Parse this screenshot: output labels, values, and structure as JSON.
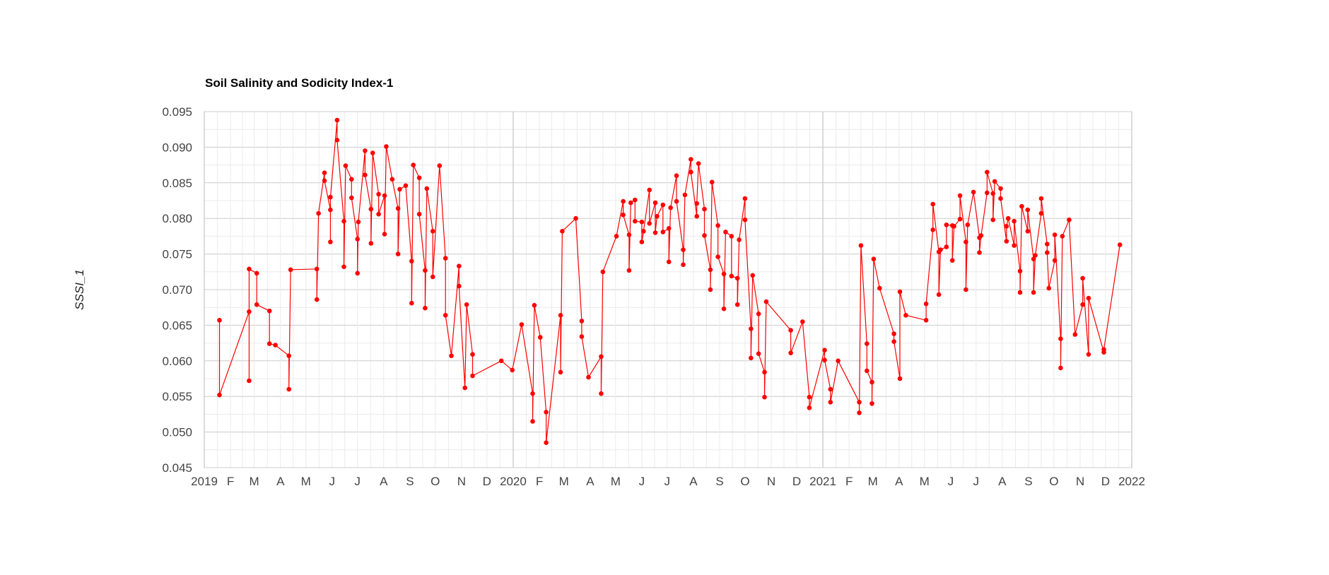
{
  "colors": {
    "series": "#ff0000",
    "grid_major": "#cccccc",
    "grid_minor": "#ebebeb",
    "axis_text": "#444444",
    "year_line": "#cccccc"
  },
  "chart_data": {
    "type": "line",
    "title": "Soil Salinity and Sodicity Index-1",
    "xlabel": "",
    "ylabel": "SSSI_1",
    "ylim": [
      0.045,
      0.095
    ],
    "y_ticks": [
      0.045,
      0.05,
      0.055,
      0.06,
      0.065,
      0.07,
      0.075,
      0.08,
      0.085,
      0.09,
      0.095
    ],
    "y_tick_labels": [
      "0.045",
      "0.050",
      "0.055",
      "0.060",
      "0.065",
      "0.070",
      "0.075",
      "0.080",
      "0.085",
      "0.090",
      "0.095"
    ],
    "xlim": [
      "2019-01-01",
      "2022-01-01"
    ],
    "x_ticks": [
      {
        "date": "2019-01-01",
        "label": "2019"
      },
      {
        "date": "2019-02-01",
        "label": "F"
      },
      {
        "date": "2019-03-01",
        "label": "M"
      },
      {
        "date": "2019-04-01",
        "label": "A"
      },
      {
        "date": "2019-05-01",
        "label": "M"
      },
      {
        "date": "2019-06-01",
        "label": "J"
      },
      {
        "date": "2019-07-01",
        "label": "J"
      },
      {
        "date": "2019-08-01",
        "label": "A"
      },
      {
        "date": "2019-09-01",
        "label": "S"
      },
      {
        "date": "2019-10-01",
        "label": "O"
      },
      {
        "date": "2019-11-01",
        "label": "N"
      },
      {
        "date": "2019-12-01",
        "label": "D"
      },
      {
        "date": "2020-01-01",
        "label": "2020"
      },
      {
        "date": "2020-02-01",
        "label": "F"
      },
      {
        "date": "2020-03-01",
        "label": "M"
      },
      {
        "date": "2020-04-01",
        "label": "A"
      },
      {
        "date": "2020-05-01",
        "label": "M"
      },
      {
        "date": "2020-06-01",
        "label": "J"
      },
      {
        "date": "2020-07-01",
        "label": "J"
      },
      {
        "date": "2020-08-01",
        "label": "A"
      },
      {
        "date": "2020-09-01",
        "label": "S"
      },
      {
        "date": "2020-10-01",
        "label": "O"
      },
      {
        "date": "2020-11-01",
        "label": "N"
      },
      {
        "date": "2020-12-01",
        "label": "D"
      },
      {
        "date": "2021-01-01",
        "label": "2021"
      },
      {
        "date": "2021-02-01",
        "label": "F"
      },
      {
        "date": "2021-03-01",
        "label": "M"
      },
      {
        "date": "2021-04-01",
        "label": "A"
      },
      {
        "date": "2021-05-01",
        "label": "M"
      },
      {
        "date": "2021-06-01",
        "label": "J"
      },
      {
        "date": "2021-07-01",
        "label": "J"
      },
      {
        "date": "2021-08-01",
        "label": "A"
      },
      {
        "date": "2021-09-01",
        "label": "S"
      },
      {
        "date": "2021-10-01",
        "label": "O"
      },
      {
        "date": "2021-11-01",
        "label": "N"
      },
      {
        "date": "2021-12-01",
        "label": "D"
      },
      {
        "date": "2022-01-01",
        "label": "2022"
      }
    ],
    "grid": true,
    "legend": "none",
    "series": [
      {
        "color": "#ff0000",
        "points": [
          [
            "2019-01-19",
            0.0657
          ],
          [
            "2019-01-19",
            0.0552
          ],
          [
            "2019-02-23",
            0.0669
          ],
          [
            "2019-02-23",
            0.0572
          ],
          [
            "2019-02-23",
            0.0729
          ],
          [
            "2019-03-04",
            0.0723
          ],
          [
            "2019-03-04",
            0.0679
          ],
          [
            "2019-03-19",
            0.067
          ],
          [
            "2019-03-19",
            0.0624
          ],
          [
            "2019-03-26",
            0.0622
          ],
          [
            "2019-04-11",
            0.0607
          ],
          [
            "2019-04-11",
            0.056
          ],
          [
            "2019-04-13",
            0.0728
          ],
          [
            "2019-05-14",
            0.0729
          ],
          [
            "2019-05-14",
            0.0686
          ],
          [
            "2019-05-16",
            0.0807
          ],
          [
            "2019-05-23",
            0.0864
          ],
          [
            "2019-05-23",
            0.0853
          ],
          [
            "2019-05-30",
            0.0812
          ],
          [
            "2019-05-30",
            0.0767
          ],
          [
            "2019-05-30",
            0.083
          ],
          [
            "2019-06-07",
            0.0938
          ],
          [
            "2019-06-07",
            0.091
          ],
          [
            "2019-06-15",
            0.0796
          ],
          [
            "2019-06-15",
            0.0732
          ],
          [
            "2019-06-17",
            0.0874
          ],
          [
            "2019-06-24",
            0.0855
          ],
          [
            "2019-06-24",
            0.0829
          ],
          [
            "2019-07-01",
            0.0771
          ],
          [
            "2019-07-01",
            0.0723
          ],
          [
            "2019-07-02",
            0.0795
          ],
          [
            "2019-07-10",
            0.0895
          ],
          [
            "2019-07-10",
            0.0861
          ],
          [
            "2019-07-17",
            0.0813
          ],
          [
            "2019-07-17",
            0.0765
          ],
          [
            "2019-07-19",
            0.0892
          ],
          [
            "2019-07-26",
            0.0834
          ],
          [
            "2019-07-26",
            0.0806
          ],
          [
            "2019-08-02",
            0.0832
          ],
          [
            "2019-08-02",
            0.0778
          ],
          [
            "2019-08-04",
            0.0901
          ],
          [
            "2019-08-11",
            0.0855
          ],
          [
            "2019-08-18",
            0.0814
          ],
          [
            "2019-08-18",
            0.075
          ],
          [
            "2019-08-20",
            0.0841
          ],
          [
            "2019-08-27",
            0.0846
          ],
          [
            "2019-09-03",
            0.074
          ],
          [
            "2019-09-03",
            0.0681
          ],
          [
            "2019-09-05",
            0.0875
          ],
          [
            "2019-09-12",
            0.0857
          ],
          [
            "2019-09-12",
            0.0806
          ],
          [
            "2019-09-19",
            0.0727
          ],
          [
            "2019-09-19",
            0.0674
          ],
          [
            "2019-09-21",
            0.0842
          ],
          [
            "2019-09-28",
            0.0782
          ],
          [
            "2019-09-28",
            0.0718
          ],
          [
            "2019-10-06",
            0.0874
          ],
          [
            "2019-10-13",
            0.0744
          ],
          [
            "2019-10-13",
            0.0664
          ],
          [
            "2019-10-20",
            0.0607
          ],
          [
            "2019-10-29",
            0.0733
          ],
          [
            "2019-10-29",
            0.0705
          ],
          [
            "2019-11-05",
            0.0562
          ],
          [
            "2019-11-07",
            0.0679
          ],
          [
            "2019-11-14",
            0.0609
          ],
          [
            "2019-11-14",
            0.0579
          ],
          [
            "2019-12-18",
            0.06
          ],
          [
            "2019-12-31",
            0.0587
          ],
          [
            "2020-01-11",
            0.0651
          ],
          [
            "2020-01-24",
            0.0554
          ],
          [
            "2020-01-24",
            0.0515
          ],
          [
            "2020-01-26",
            0.0678
          ],
          [
            "2020-02-02",
            0.0633
          ],
          [
            "2020-02-09",
            0.0528
          ],
          [
            "2020-02-09",
            0.0485
          ],
          [
            "2020-02-26",
            0.0664
          ],
          [
            "2020-02-26",
            0.0584
          ],
          [
            "2020-02-28",
            0.0782
          ],
          [
            "2020-03-15",
            0.08
          ],
          [
            "2020-03-22",
            0.0656
          ],
          [
            "2020-03-22",
            0.0634
          ],
          [
            "2020-03-30",
            0.0577
          ],
          [
            "2020-04-14",
            0.0606
          ],
          [
            "2020-04-14",
            0.0554
          ],
          [
            "2020-04-16",
            0.0725
          ],
          [
            "2020-05-02",
            0.0775
          ],
          [
            "2020-05-10",
            0.0824
          ],
          [
            "2020-05-10",
            0.0805
          ],
          [
            "2020-05-17",
            0.0777
          ],
          [
            "2020-05-17",
            0.0727
          ],
          [
            "2020-05-19",
            0.0822
          ],
          [
            "2020-05-24",
            0.0826
          ],
          [
            "2020-05-24",
            0.0796
          ],
          [
            "2020-06-01",
            0.0795
          ],
          [
            "2020-06-01",
            0.0767
          ],
          [
            "2020-06-03",
            0.0782
          ],
          [
            "2020-06-10",
            0.084
          ],
          [
            "2020-06-10",
            0.0793
          ],
          [
            "2020-06-17",
            0.0822
          ],
          [
            "2020-06-17",
            0.078
          ],
          [
            "2020-06-19",
            0.0803
          ],
          [
            "2020-06-26",
            0.0819
          ],
          [
            "2020-06-26",
            0.0781
          ],
          [
            "2020-07-03",
            0.0786
          ],
          [
            "2020-07-03",
            0.0739
          ],
          [
            "2020-07-05",
            0.0815
          ],
          [
            "2020-07-12",
            0.086
          ],
          [
            "2020-07-12",
            0.0824
          ],
          [
            "2020-07-20",
            0.0756
          ],
          [
            "2020-07-20",
            0.0735
          ],
          [
            "2020-07-22",
            0.0833
          ],
          [
            "2020-07-29",
            0.0883
          ],
          [
            "2020-07-29",
            0.0865
          ],
          [
            "2020-08-05",
            0.0803
          ],
          [
            "2020-08-05",
            0.0821
          ],
          [
            "2020-08-07",
            0.0877
          ],
          [
            "2020-08-14",
            0.0813
          ],
          [
            "2020-08-14",
            0.0776
          ],
          [
            "2020-08-21",
            0.0728
          ],
          [
            "2020-08-21",
            0.07
          ],
          [
            "2020-08-23",
            0.0851
          ],
          [
            "2020-08-30",
            0.079
          ],
          [
            "2020-08-30",
            0.0746
          ],
          [
            "2020-09-06",
            0.0722
          ],
          [
            "2020-09-06",
            0.0673
          ],
          [
            "2020-09-08",
            0.0781
          ],
          [
            "2020-09-15",
            0.0775
          ],
          [
            "2020-09-15",
            0.0719
          ],
          [
            "2020-09-22",
            0.0716
          ],
          [
            "2020-09-22",
            0.0679
          ],
          [
            "2020-09-24",
            0.077
          ],
          [
            "2020-10-01",
            0.0828
          ],
          [
            "2020-10-01",
            0.0798
          ],
          [
            "2020-10-08",
            0.0645
          ],
          [
            "2020-10-08",
            0.0604
          ],
          [
            "2020-10-10",
            0.072
          ],
          [
            "2020-10-17",
            0.0666
          ],
          [
            "2020-10-17",
            0.061
          ],
          [
            "2020-10-24",
            0.0584
          ],
          [
            "2020-10-24",
            0.0549
          ],
          [
            "2020-10-26",
            0.0683
          ],
          [
            "2020-11-24",
            0.0643
          ],
          [
            "2020-11-24",
            0.0611
          ],
          [
            "2020-12-08",
            0.0655
          ],
          [
            "2020-12-16",
            0.0549
          ],
          [
            "2020-12-16",
            0.0534
          ],
          [
            "2021-01-03",
            0.0615
          ],
          [
            "2021-01-03",
            0.0601
          ],
          [
            "2021-01-10",
            0.056
          ],
          [
            "2021-01-10",
            0.0542
          ],
          [
            "2021-01-19",
            0.06
          ],
          [
            "2021-02-13",
            0.0542
          ],
          [
            "2021-02-13",
            0.0527
          ],
          [
            "2021-02-15",
            0.0762
          ],
          [
            "2021-02-22",
            0.0624
          ],
          [
            "2021-02-22",
            0.0586
          ],
          [
            "2021-02-28",
            0.057
          ],
          [
            "2021-02-28",
            0.054
          ],
          [
            "2021-03-02",
            0.0743
          ],
          [
            "2021-03-09",
            0.0702
          ],
          [
            "2021-03-26",
            0.0638
          ],
          [
            "2021-03-26",
            0.0627
          ],
          [
            "2021-04-02",
            0.0575
          ],
          [
            "2021-04-02",
            0.0697
          ],
          [
            "2021-04-09",
            0.0664
          ],
          [
            "2021-05-03",
            0.0657
          ],
          [
            "2021-05-03",
            0.068
          ],
          [
            "2021-05-11",
            0.0784
          ],
          [
            "2021-05-11",
            0.082
          ],
          [
            "2021-05-18",
            0.0753
          ],
          [
            "2021-05-18",
            0.0693
          ],
          [
            "2021-05-20",
            0.0756
          ],
          [
            "2021-05-27",
            0.076
          ],
          [
            "2021-05-27",
            0.0791
          ],
          [
            "2021-06-03",
            0.079
          ],
          [
            "2021-06-03",
            0.0741
          ],
          [
            "2021-06-05",
            0.0789
          ],
          [
            "2021-06-12",
            0.0799
          ],
          [
            "2021-06-12",
            0.0832
          ],
          [
            "2021-06-19",
            0.0767
          ],
          [
            "2021-06-19",
            0.07
          ],
          [
            "2021-06-21",
            0.0791
          ],
          [
            "2021-06-28",
            0.0837
          ],
          [
            "2021-07-05",
            0.0773
          ],
          [
            "2021-07-05",
            0.0752
          ],
          [
            "2021-07-07",
            0.0776
          ],
          [
            "2021-07-14",
            0.0836
          ],
          [
            "2021-07-14",
            0.0865
          ],
          [
            "2021-07-21",
            0.0835
          ],
          [
            "2021-07-21",
            0.0798
          ],
          [
            "2021-07-23",
            0.0852
          ],
          [
            "2021-07-30",
            0.0842
          ],
          [
            "2021-07-30",
            0.0828
          ],
          [
            "2021-08-06",
            0.0768
          ],
          [
            "2021-08-06",
            0.0789
          ],
          [
            "2021-08-08",
            0.08
          ],
          [
            "2021-08-15",
            0.0762
          ],
          [
            "2021-08-15",
            0.0796
          ],
          [
            "2021-08-22",
            0.0726
          ],
          [
            "2021-08-22",
            0.0696
          ],
          [
            "2021-08-24",
            0.0817
          ],
          [
            "2021-08-31",
            0.0782
          ],
          [
            "2021-08-31",
            0.0812
          ],
          [
            "2021-09-07",
            0.0743
          ],
          [
            "2021-09-07",
            0.0696
          ],
          [
            "2021-09-09",
            0.0748
          ],
          [
            "2021-09-16",
            0.0807
          ],
          [
            "2021-09-16",
            0.0828
          ],
          [
            "2021-09-23",
            0.0764
          ],
          [
            "2021-09-23",
            0.0752
          ],
          [
            "2021-09-25",
            0.0702
          ],
          [
            "2021-10-02",
            0.0741
          ],
          [
            "2021-10-02",
            0.0777
          ],
          [
            "2021-10-09",
            0.0631
          ],
          [
            "2021-10-09",
            0.059
          ],
          [
            "2021-10-11",
            0.0775
          ],
          [
            "2021-10-19",
            0.0798
          ],
          [
            "2021-10-26",
            0.0637
          ],
          [
            "2021-11-04",
            0.0679
          ],
          [
            "2021-11-04",
            0.0716
          ],
          [
            "2021-11-11",
            0.0609
          ],
          [
            "2021-11-11",
            0.0688
          ],
          [
            "2021-11-29",
            0.0612
          ],
          [
            "2021-11-29",
            0.0616
          ],
          [
            "2021-12-18",
            0.0763
          ]
        ]
      }
    ]
  }
}
